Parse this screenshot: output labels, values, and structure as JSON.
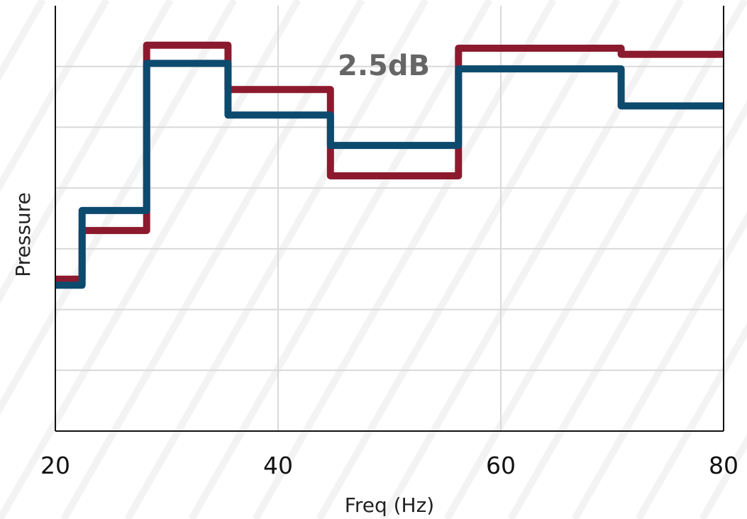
{
  "chart_data": {
    "type": "line",
    "subtype": "step",
    "annotation": "2.5dB",
    "xlabel": "Freq (Hz)",
    "ylabel": "Pressure",
    "xlim": [
      20,
      80
    ],
    "ylim": [
      0,
      7
    ],
    "x_ticks": [
      20,
      40,
      60,
      80
    ],
    "x_tick_labels": [
      "20",
      "40",
      "60",
      "80"
    ],
    "y_tick_labels_visible": false,
    "grid": true,
    "series": [
      {
        "color": "#8c1a2e",
        "points": [
          [
            20,
            2.5
          ],
          [
            22.4,
            2.5
          ],
          [
            22.4,
            3.3
          ],
          [
            28.2,
            3.3
          ],
          [
            28.2,
            6.35
          ],
          [
            35.5,
            6.35
          ],
          [
            35.5,
            5.62
          ],
          [
            44.7,
            5.62
          ],
          [
            44.7,
            4.2
          ],
          [
            56.2,
            4.2
          ],
          [
            56.2,
            6.3
          ],
          [
            70.8,
            6.3
          ],
          [
            70.8,
            6.2
          ],
          [
            80,
            6.2
          ]
        ]
      },
      {
        "color": "#0c4a6e",
        "points": [
          [
            20,
            2.4
          ],
          [
            22.4,
            2.4
          ],
          [
            22.4,
            3.63
          ],
          [
            28.2,
            3.63
          ],
          [
            28.2,
            6.05
          ],
          [
            35.5,
            6.05
          ],
          [
            35.5,
            5.2
          ],
          [
            44.7,
            5.2
          ],
          [
            44.7,
            4.7
          ],
          [
            56.2,
            4.7
          ],
          [
            56.2,
            5.96
          ],
          [
            70.8,
            5.96
          ],
          [
            70.8,
            5.35
          ],
          [
            80,
            5.35
          ]
        ]
      }
    ]
  }
}
